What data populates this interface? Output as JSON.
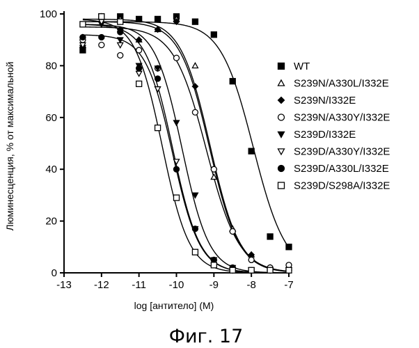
{
  "figure": {
    "caption": "Фиг. 17"
  },
  "chart_data": {
    "type": "scatter",
    "xlabel": "log [антитело] (M)",
    "ylabel": "Люминесценция, % от максимальной",
    "xlim": [
      -13,
      -7
    ],
    "ylim": [
      0,
      100
    ],
    "xticks": [
      -13,
      -12,
      -11,
      -10,
      -9,
      -8,
      -7
    ],
    "yticks": [
      0,
      20,
      40,
      60,
      80,
      100
    ],
    "grid": false,
    "legend_position": "right",
    "series": [
      {
        "name": "WT",
        "marker": "square-filled",
        "x": [
          -12.5,
          -12,
          -11.5,
          -11,
          -10.5,
          -10,
          -9.5,
          -9,
          -8.5,
          -8,
          -7.5,
          -7
        ],
        "y": [
          86,
          99,
          99,
          98,
          98,
          99,
          97,
          92,
          74,
          47,
          14,
          10
        ],
        "curve": {
          "top": 97,
          "bottom": 0,
          "logEC50": -7.95,
          "hill": 1.0
        }
      },
      {
        "name": "S239N/A330L/I332E",
        "marker": "triangle-open",
        "x": [
          -12.5,
          -12,
          -11.5,
          -11,
          -10.5,
          -10,
          -9.5,
          -9,
          -8.5,
          -8,
          -7.5,
          -7
        ],
        "y": [
          88,
          99,
          98,
          90,
          94,
          98,
          80,
          37,
          17,
          7,
          2,
          2
        ],
        "curve": {
          "top": 98,
          "bottom": 0,
          "logEC50": -9.1,
          "hill": 1.1
        }
      },
      {
        "name": "S239N/I332E",
        "marker": "diamond-filled",
        "x": [
          -12.5,
          -12,
          -11.5,
          -11,
          -10.5,
          -10,
          -9.5,
          -9,
          -8.5,
          -8,
          -7.5,
          -7
        ],
        "y": [
          91,
          98,
          94,
          90,
          94,
          97,
          72,
          40,
          16,
          7,
          2,
          2
        ],
        "curve": {
          "top": 97,
          "bottom": 0,
          "logEC50": -9.12,
          "hill": 1.1
        }
      },
      {
        "name": "S239N/A330Y/I332E",
        "marker": "circle-open",
        "x": [
          -12.5,
          -12,
          -11.5,
          -11,
          -10.5,
          -10,
          -9.5,
          -9,
          -8.5,
          -8,
          -7.5,
          -7
        ],
        "y": [
          90,
          88,
          84,
          86,
          79,
          83,
          62,
          40,
          16,
          5,
          2,
          3
        ],
        "curve": {
          "top": 95,
          "bottom": 0,
          "logEC50": -9.2,
          "hill": 1.0
        }
      },
      {
        "name": "S239D/I332E",
        "marker": "triangle-down-filled",
        "x": [
          -12.5,
          -12,
          -11.5,
          -11,
          -10.5,
          -10,
          -9.5,
          -9,
          -8.5,
          -8,
          -7.5,
          -7
        ],
        "y": [
          87,
          96,
          90,
          80,
          79,
          58,
          30,
          5,
          2,
          1,
          1,
          1
        ],
        "curve": {
          "top": 96,
          "bottom": 0,
          "logEC50": -9.85,
          "hill": 1.2
        }
      },
      {
        "name": "S239D/A330Y/I332E",
        "marker": "triangle-down-open",
        "x": [
          -12.5,
          -12,
          -11.5,
          -11,
          -10.5,
          -10,
          -9.5,
          -9,
          -8.5,
          -8,
          -7.5,
          -7
        ],
        "y": [
          88,
          97,
          88,
          77,
          71,
          43,
          17,
          4,
          1,
          1,
          1,
          1
        ],
        "curve": {
          "top": 96,
          "bottom": 0,
          "logEC50": -10.1,
          "hill": 1.2
        }
      },
      {
        "name": "S239D/A330L/I332E",
        "marker": "circle-filled",
        "x": [
          -12.5,
          -12,
          -11.5,
          -11,
          -10.5,
          -10,
          -9.5,
          -9,
          -8.5,
          -8,
          -7.5,
          -7
        ],
        "y": [
          91,
          91,
          93,
          79,
          75,
          40,
          17,
          5,
          2,
          1,
          1,
          1
        ],
        "curve": {
          "top": 92,
          "bottom": 0,
          "logEC50": -10.1,
          "hill": 1.2
        }
      },
      {
        "name": "S239D/S298A/I332E",
        "marker": "square-open",
        "x": [
          -12.5,
          -12,
          -11.5,
          -11,
          -10.5,
          -10,
          -9.5,
          -9,
          -8.5,
          -8,
          -7.5,
          -7
        ],
        "y": [
          96,
          99,
          97,
          73,
          56,
          29,
          8,
          3,
          1,
          1,
          1,
          1
        ],
        "curve": {
          "top": 98,
          "bottom": 0,
          "logEC50": -10.38,
          "hill": 1.2
        }
      }
    ]
  }
}
